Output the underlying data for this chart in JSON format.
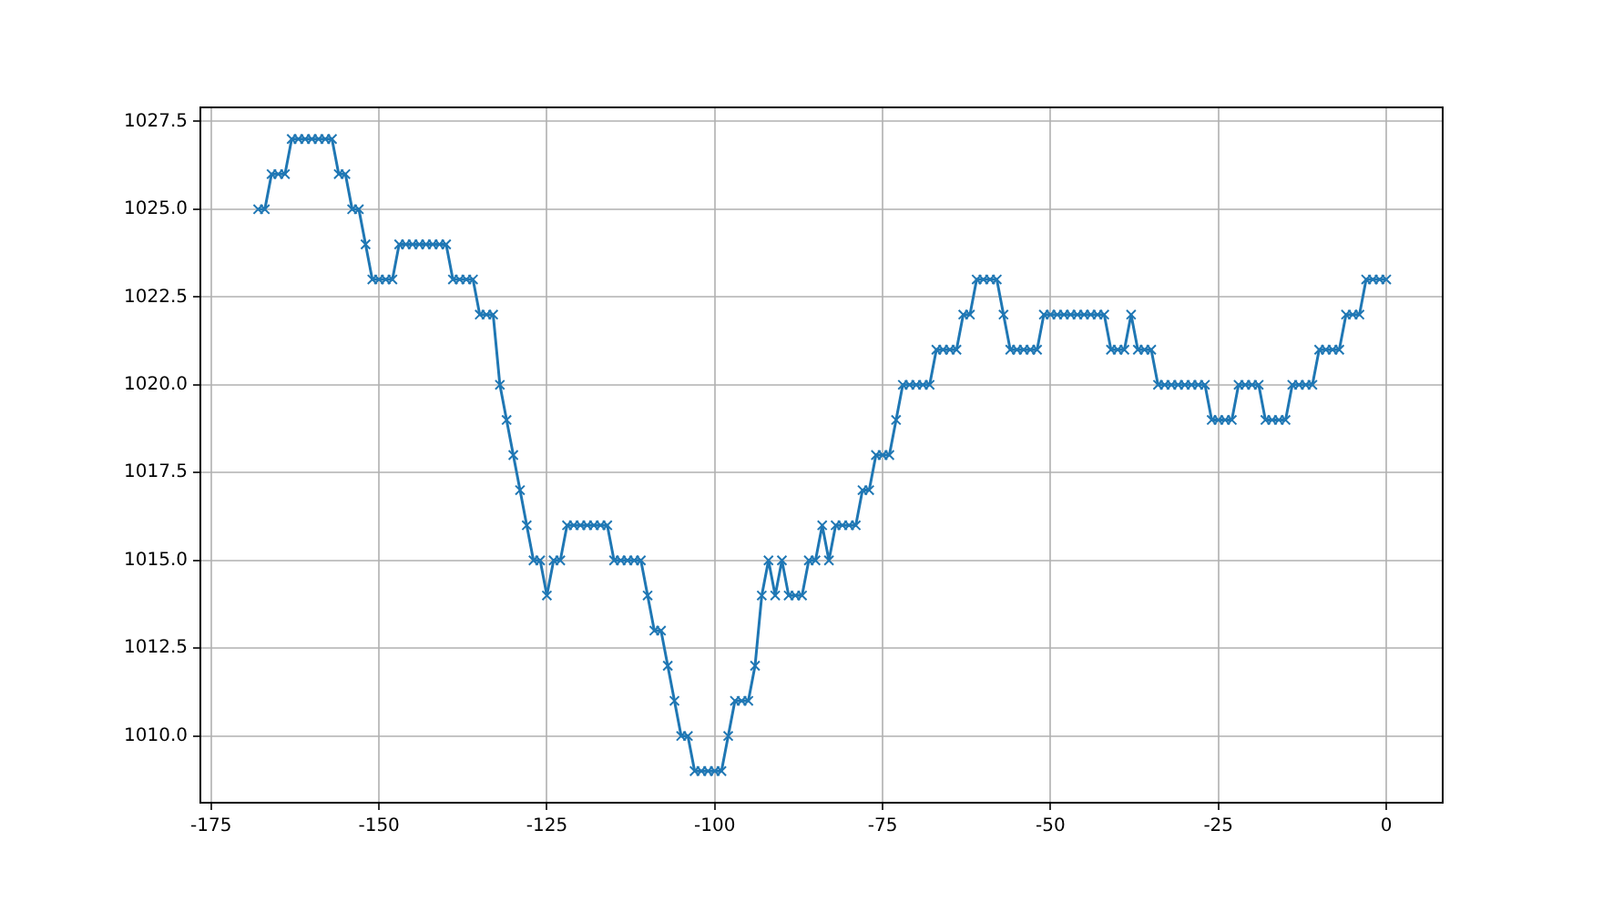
{
  "chart_data": {
    "type": "line",
    "x": [
      -168,
      -167,
      -166,
      -165,
      -164,
      -163,
      -162,
      -161,
      -160,
      -159,
      -158,
      -157,
      -156,
      -155,
      -154,
      -153,
      -152,
      -151,
      -150,
      -149,
      -148,
      -147,
      -146,
      -145,
      -144,
      -143,
      -142,
      -141,
      -140,
      -139,
      -138,
      -137,
      -136,
      -135,
      -134,
      -133,
      -132,
      -131,
      -130,
      -129,
      -128,
      -127,
      -126,
      -125,
      -124,
      -123,
      -122,
      -121,
      -120,
      -119,
      -118,
      -117,
      -116,
      -115,
      -114,
      -113,
      -112,
      -111,
      -110,
      -109,
      -108,
      -107,
      -106,
      -105,
      -104,
      -103,
      -102,
      -101,
      -100,
      -99,
      -98,
      -97,
      -96,
      -95,
      -94,
      -93,
      -92,
      -91,
      -90,
      -89,
      -88,
      -87,
      -86,
      -85,
      -84,
      -83,
      -82,
      -81,
      -80,
      -79,
      -78,
      -77,
      -76,
      -75,
      -74,
      -73,
      -72,
      -71,
      -70,
      -69,
      -68,
      -67,
      -66,
      -65,
      -64,
      -63,
      -62,
      -61,
      -60,
      -59,
      -58,
      -57,
      -56,
      -55,
      -54,
      -53,
      -52,
      -51,
      -50,
      -49,
      -48,
      -47,
      -46,
      -45,
      -44,
      -43,
      -42,
      -41,
      -40,
      -39,
      -38,
      -37,
      -36,
      -35,
      -34,
      -33,
      -32,
      -31,
      -30,
      -29,
      -28,
      -27,
      -26,
      -25,
      -24,
      -23,
      -22,
      -21,
      -20,
      -19,
      -18,
      -17,
      -16,
      -15,
      -14,
      -13,
      -12,
      -11,
      -10,
      -9,
      -8,
      -7,
      -6,
      -5,
      -4,
      -3,
      -2,
      -1,
      0
    ],
    "series": [
      {
        "color": "#1f77b4",
        "values": [
          1025,
          1025,
          1026,
          1026,
          1026,
          1027,
          1027,
          1027,
          1027,
          1027,
          1027,
          1027,
          1026,
          1026,
          1025,
          1025,
          1024,
          1023,
          1023,
          1023,
          1023,
          1024,
          1024,
          1024,
          1024,
          1024,
          1024,
          1024,
          1024,
          1023,
          1023,
          1023,
          1023,
          1022,
          1022,
          1022,
          1020,
          1019,
          1018,
          1017,
          1016,
          1015,
          1015,
          1014,
          1015,
          1015,
          1016,
          1016,
          1016,
          1016,
          1016,
          1016,
          1016,
          1015,
          1015,
          1015,
          1015,
          1015,
          1014,
          1013,
          1013,
          1012,
          1011,
          1010,
          1010,
          1009,
          1009,
          1009,
          1009,
          1009,
          1010,
          1011,
          1011,
          1011,
          1012,
          1014,
          1015,
          1014,
          1015,
          1014,
          1014,
          1014,
          1015,
          1015,
          1016,
          1015,
          1016,
          1016,
          1016,
          1016,
          1017,
          1017,
          1018,
          1018,
          1018,
          1019,
          1020,
          1020,
          1020,
          1020,
          1020,
          1021,
          1021,
          1021,
          1021,
          1022,
          1022,
          1023,
          1023,
          1023,
          1023,
          1022,
          1021,
          1021,
          1021,
          1021,
          1021,
          1022,
          1022,
          1022,
          1022,
          1022,
          1022,
          1022,
          1022,
          1022,
          1022,
          1021,
          1021,
          1021,
          1022,
          1021,
          1021,
          1021,
          1020,
          1020,
          1020,
          1020,
          1020,
          1020,
          1020,
          1020,
          1019,
          1019,
          1019,
          1019,
          1020,
          1020,
          1020,
          1020,
          1019,
          1019,
          1019,
          1019,
          1020,
          1020,
          1020,
          1020,
          1021,
          1021,
          1021,
          1021,
          1022,
          1022,
          1022,
          1023,
          1023,
          1023,
          1023
        ]
      }
    ],
    "xlim": [
      -176.6,
      8.4
    ],
    "xticks": [
      -175,
      -150,
      -125,
      -100,
      -75,
      -50,
      -25,
      0
    ],
    "ylim": [
      1008.1,
      1027.9
    ],
    "yticks": [
      {
        "value": 1010,
        "label": "1010.0"
      },
      {
        "value": 1012.5,
        "label": "1012.5"
      },
      {
        "value": 1015,
        "label": "1015.0"
      },
      {
        "value": 1017.5,
        "label": "1017.5"
      },
      {
        "value": 1020,
        "label": "1020.0"
      },
      {
        "value": 1022.5,
        "label": "1022.5"
      },
      {
        "value": 1025,
        "label": "1025.0"
      },
      {
        "value": 1027.5,
        "label": "1027.5"
      }
    ],
    "grid": true,
    "marker": "cross",
    "line_style": "solid",
    "legend": false
  }
}
